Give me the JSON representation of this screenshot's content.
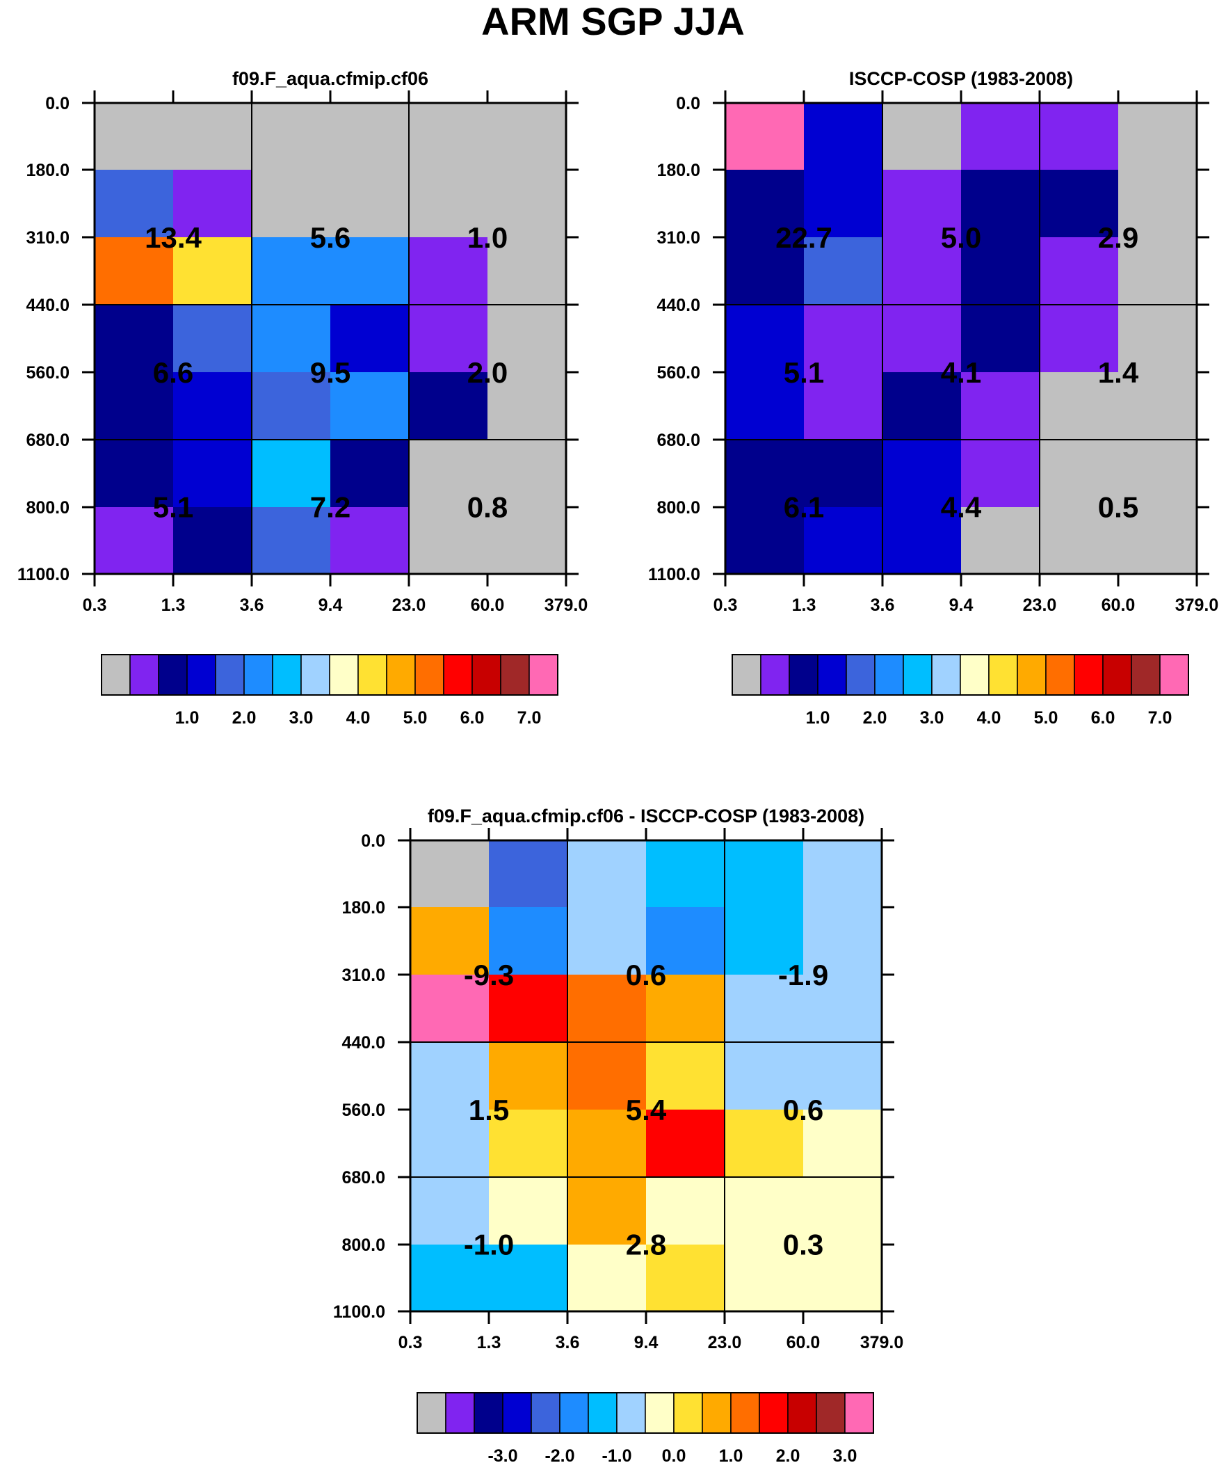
{
  "title": "ARM SGP JJA",
  "colormap": [
    "#c0c0c0",
    "#8024f0",
    "#00008c",
    "#0000d2",
    "#3c64dc",
    "#1e8cff",
    "#00beff",
    "#a0d2ff",
    "#ffffc8",
    "#ffe132",
    "#ffaa00",
    "#ff6e00",
    "#ff0000",
    "#c80000",
    "#a02828",
    "#ff69b4"
  ],
  "chart_data": [
    {
      "type": "heatmap",
      "title": "f09.F_aqua.cfmip.cf06",
      "x_ticks": [
        "0.3",
        "1.3",
        "3.6",
        "9.4",
        "23.0",
        "60.0",
        "379.0"
      ],
      "y_ticks": [
        "0.0",
        "180.0",
        "310.0",
        "440.0",
        "560.0",
        "680.0",
        "800.0",
        "1100.0"
      ],
      "cell_color_index": [
        [
          0,
          0,
          0,
          0,
          0,
          0
        ],
        [
          4,
          1,
          0,
          0,
          0,
          0
        ],
        [
          11,
          9,
          5,
          5,
          1,
          0
        ],
        [
          2,
          4,
          5,
          3,
          1,
          0
        ],
        [
          2,
          3,
          4,
          5,
          2,
          0
        ],
        [
          2,
          3,
          6,
          2,
          0,
          0
        ],
        [
          1,
          2,
          4,
          1,
          0,
          0
        ]
      ],
      "block_values": [
        [
          "13.4",
          "5.6",
          "1.0"
        ],
        [
          "6.6",
          "9.5",
          "2.0"
        ],
        [
          "5.1",
          "7.2",
          "0.8"
        ]
      ],
      "colorbar": {
        "tick_labels": [
          "1.0",
          "2.0",
          "3.0",
          "4.0",
          "5.0",
          "6.0",
          "7.0"
        ]
      }
    },
    {
      "type": "heatmap",
      "title": "ISCCP-COSP (1983-2008)",
      "x_ticks": [
        "0.3",
        "1.3",
        "3.6",
        "9.4",
        "23.0",
        "60.0",
        "379.0"
      ],
      "y_ticks": [
        "0.0",
        "180.0",
        "310.0",
        "440.0",
        "560.0",
        "680.0",
        "800.0",
        "1100.0"
      ],
      "cell_color_index": [
        [
          15,
          3,
          0,
          1,
          1,
          0
        ],
        [
          2,
          3,
          1,
          2,
          2,
          0
        ],
        [
          2,
          4,
          1,
          2,
          1,
          0
        ],
        [
          3,
          1,
          1,
          2,
          1,
          0
        ],
        [
          3,
          1,
          2,
          1,
          0,
          0
        ],
        [
          2,
          2,
          3,
          1,
          0,
          0
        ],
        [
          2,
          3,
          3,
          0,
          0,
          0
        ]
      ],
      "block_values": [
        [
          "22.7",
          "5.0",
          "2.9"
        ],
        [
          "5.1",
          "4.1",
          "1.4"
        ],
        [
          "6.1",
          "4.4",
          "0.5"
        ]
      ],
      "colorbar": {
        "tick_labels": [
          "1.0",
          "2.0",
          "3.0",
          "4.0",
          "5.0",
          "6.0",
          "7.0"
        ]
      }
    },
    {
      "type": "heatmap",
      "title": "f09.F_aqua.cfmip.cf06 - ISCCP-COSP (1983-2008)",
      "x_ticks": [
        "0.3",
        "1.3",
        "3.6",
        "9.4",
        "23.0",
        "60.0",
        "379.0"
      ],
      "y_ticks": [
        "0.0",
        "180.0",
        "310.0",
        "440.0",
        "560.0",
        "680.0",
        "800.0",
        "1100.0"
      ],
      "cell_color_index": [
        [
          0,
          4,
          7,
          6,
          6,
          7
        ],
        [
          10,
          5,
          7,
          5,
          6,
          7
        ],
        [
          15,
          12,
          11,
          10,
          7,
          7
        ],
        [
          7,
          10,
          11,
          9,
          7,
          7
        ],
        [
          7,
          9,
          10,
          12,
          9,
          8
        ],
        [
          7,
          8,
          10,
          8,
          8,
          8
        ],
        [
          6,
          6,
          8,
          9,
          8,
          8
        ]
      ],
      "block_values": [
        [
          "-9.3",
          "0.6",
          "-1.9"
        ],
        [
          "1.5",
          "5.4",
          "0.6"
        ],
        [
          "-1.0",
          "2.8",
          "0.3"
        ]
      ],
      "colorbar": {
        "tick_labels": [
          "-3.0",
          "-2.0",
          "-1.0",
          "0.0",
          "1.0",
          "2.0",
          "3.0"
        ]
      }
    }
  ]
}
